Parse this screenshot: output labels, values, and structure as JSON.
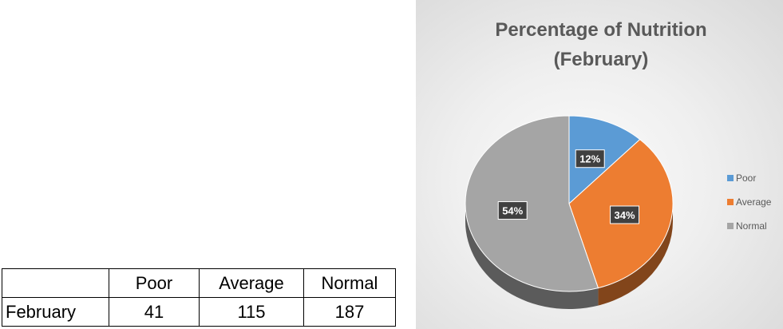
{
  "table": {
    "headers": [
      "",
      "Poor",
      "Average",
      "Normal"
    ],
    "row_label": "February",
    "values": [
      "41",
      "115",
      "187"
    ]
  },
  "chart_data": {
    "type": "pie",
    "title": "Percentage of Nutrition",
    "subtitle": "(February)",
    "categories": [
      "Poor",
      "Average",
      "Normal"
    ],
    "values": [
      41,
      115,
      187
    ],
    "percent_labels": [
      "12%",
      "34%",
      "54%"
    ],
    "colors": [
      "#5b9bd5",
      "#ed7d31",
      "#a5a5a5"
    ],
    "legend_position": "right"
  }
}
